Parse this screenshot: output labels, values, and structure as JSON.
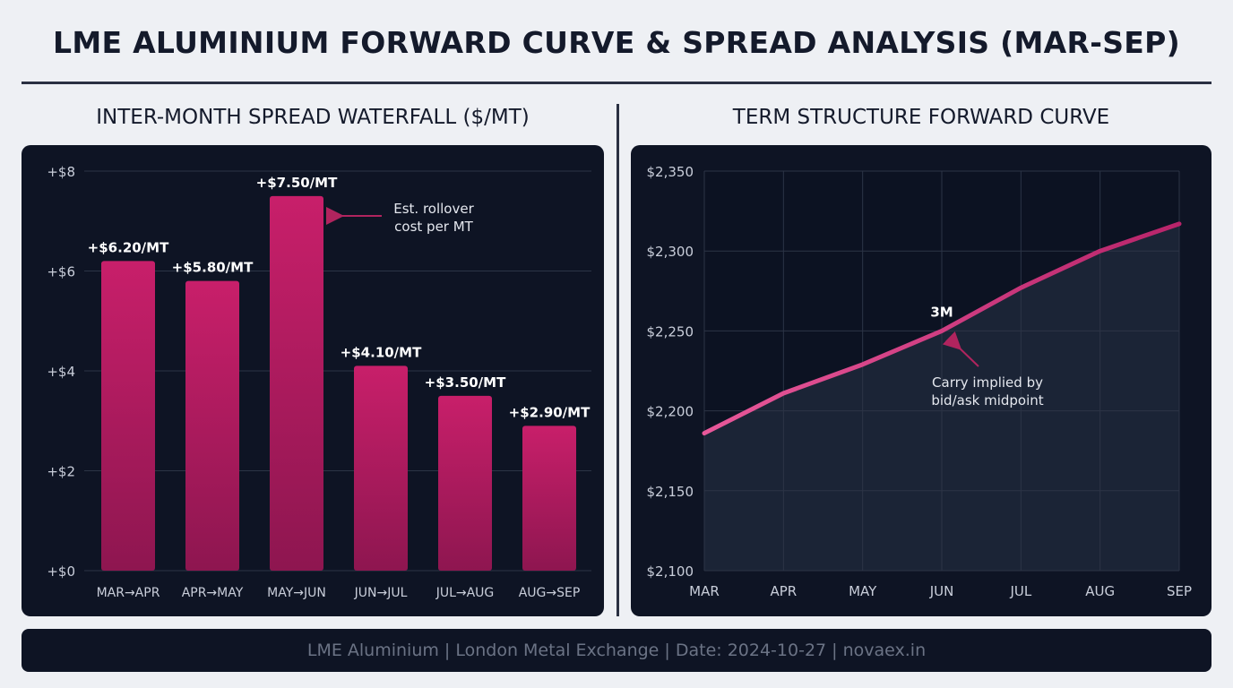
{
  "title": "LME ALUMINIUM FORWARD CURVE & SPREAD ANALYSIS (MAR-SEP)",
  "footer": "LME Aluminium | London Metal Exchange | Date: 2024-10-27 | novaex.in",
  "colors": {
    "bar": "#c21d66",
    "line": "#e0508f",
    "panel": "#0e1424",
    "annotation_arrow": "#b0245e"
  },
  "chart_data": [
    {
      "type": "bar",
      "title": "INTER-MONTH SPREAD WATERFALL ($/MT)",
      "categories": [
        "MAR→APR",
        "APR→MAY",
        "MAY→JUN",
        "JUN→JUL",
        "JUL→AUG",
        "AUG→SEP"
      ],
      "values": [
        6.2,
        5.8,
        7.5,
        4.1,
        3.5,
        2.9
      ],
      "data_labels": [
        "+$6.20/MT",
        "+$5.80/MT",
        "+$7.50/MT",
        "+$4.10/MT",
        "+$3.50/MT",
        "+$2.90/MT"
      ],
      "ylim": [
        0,
        8
      ],
      "yticks": [
        0,
        2,
        4,
        6,
        8
      ],
      "ytick_labels": [
        "+$0",
        "+$2",
        "+$4",
        "+$6",
        "+$8"
      ],
      "grid": true,
      "annotation": [
        "Est. rollover",
        "cost per MT"
      ]
    },
    {
      "type": "area",
      "title": "TERM STRUCTURE FORWARD CURVE",
      "categories": [
        "MAR",
        "APR",
        "MAY",
        "JUN",
        "JUL",
        "AUG",
        "SEP"
      ],
      "values": [
        2186,
        2211,
        2229,
        2250,
        2277,
        2300,
        2317
      ],
      "ylim": [
        2100,
        2350
      ],
      "yticks": [
        2100,
        2150,
        2200,
        2250,
        2300,
        2350
      ],
      "ytick_labels": [
        "$2,100",
        "$2,150",
        "$2,200",
        "$2,250",
        "$2,300",
        "$2,350"
      ],
      "grid": true,
      "point_label": "3M",
      "annotation": [
        "Carry implied by",
        "bid/ask midpoint"
      ]
    }
  ]
}
